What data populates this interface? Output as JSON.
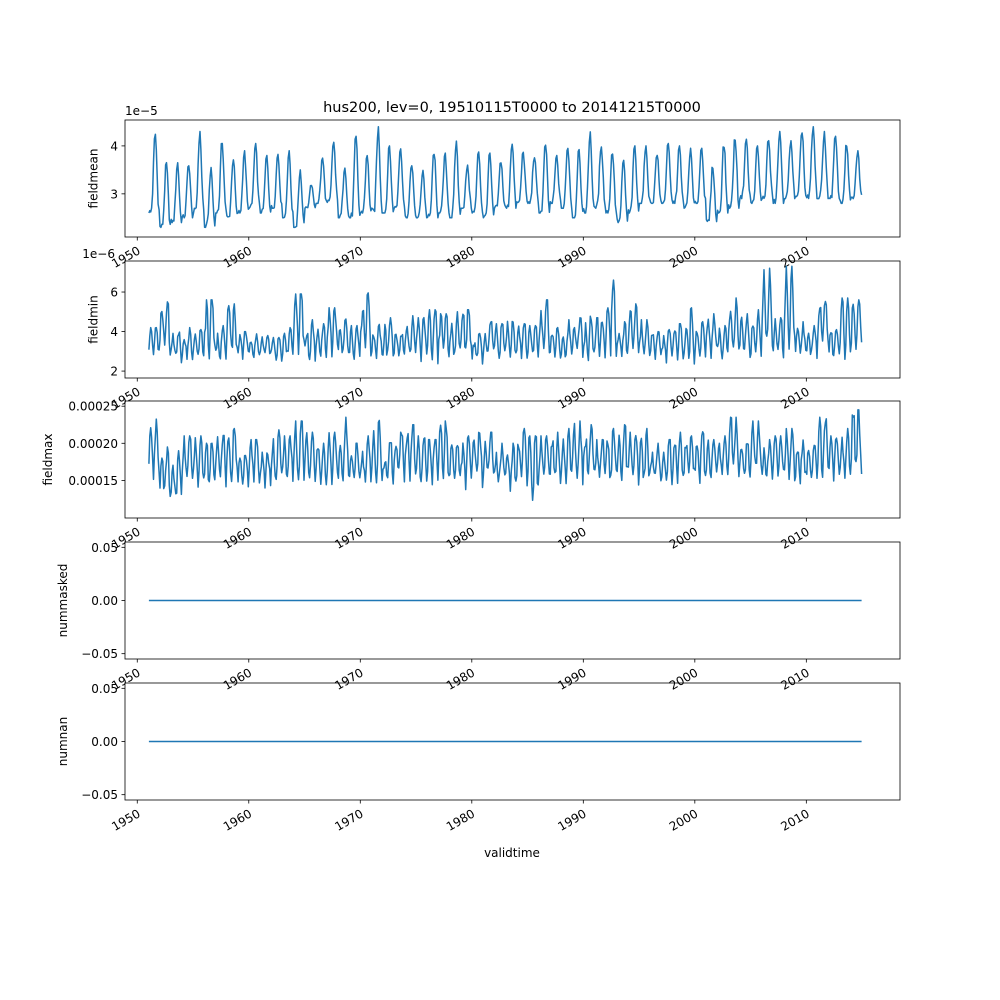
{
  "chart_data": {
    "type": "line",
    "title": "hus200, lev=0, 19510115T0000 to 20141215T0000",
    "xlabel": "validtime",
    "xlim": [
      1948.9,
      2018.4
    ],
    "xticks": [
      1950,
      1960,
      1970,
      1980,
      1990,
      2000,
      2010
    ],
    "xtick_labels": [
      "1950",
      "1960",
      "1970",
      "1980",
      "1990",
      "2000",
      "2010"
    ],
    "start_year": 1951,
    "end_year": 2014,
    "frequency": "monthly (15th of each month)",
    "line_color": "#1f77b4",
    "subplots": [
      {
        "ylabel": "fieldmean",
        "offset_text": "1e−5",
        "scale": 1e-05,
        "ylim": [
          2.1,
          4.54
        ],
        "yticks": [
          3,
          4
        ],
        "ytick_labels": [
          "3",
          "4"
        ],
        "seasonal": "single",
        "annual_peak": [
          4.25,
          3.65,
          3.65,
          3.65,
          4.3,
          3.55,
          4.1,
          3.75,
          3.9,
          4.05,
          3.8,
          3.85,
          3.9,
          3.5,
          3.2,
          3.75,
          4.1,
          3.6,
          4.2,
          3.8,
          4.4,
          4.0,
          4.0,
          3.65,
          3.5,
          3.9,
          3.85,
          4.1,
          3.6,
          3.9,
          3.85,
          3.7,
          4.1,
          3.9,
          3.8,
          4.05,
          3.8,
          4.0,
          4.0,
          4.3,
          4.05,
          3.9,
          3.7,
          4.0,
          4.0,
          3.85,
          4.05,
          4.0,
          3.95,
          4.0,
          3.6,
          4.05,
          4.2,
          4.15,
          4.0,
          4.15,
          4.3,
          4.15,
          4.35,
          4.4,
          4.3,
          4.2,
          4.05,
          3.9
        ],
        "annual_trough": [
          2.6,
          2.3,
          2.4,
          2.5,
          2.6,
          2.3,
          2.6,
          2.5,
          2.6,
          2.7,
          2.6,
          2.7,
          2.5,
          2.3,
          2.7,
          2.8,
          2.8,
          2.5,
          2.5,
          2.6,
          2.6,
          2.6,
          2.7,
          2.5,
          2.5,
          2.5,
          2.6,
          2.5,
          2.7,
          2.6,
          2.5,
          2.7,
          2.7,
          2.8,
          2.8,
          2.6,
          2.8,
          2.7,
          2.5,
          2.6,
          2.7,
          2.6,
          2.4,
          2.6,
          2.8,
          2.8,
          2.8,
          2.8,
          2.7,
          2.8,
          2.4,
          2.6,
          2.7,
          2.9,
          2.8,
          2.9,
          2.8,
          2.9,
          2.9,
          2.9,
          2.9,
          2.9,
          2.8,
          2.9
        ]
      },
      {
        "ylabel": "fieldmin",
        "offset_text": "1e−6",
        "scale": 1e-06,
        "ylim": [
          1.65,
          7.57
        ],
        "yticks": [
          2,
          4,
          6
        ],
        "ytick_labels": [
          "2",
          "4",
          "6"
        ],
        "seasonal": "double",
        "annual_peak": [
          4.2,
          5.5,
          4.0,
          4.2,
          4.1,
          5.6,
          4.3,
          5.4,
          4.0,
          3.9,
          3.8,
          3.7,
          4.2,
          5.9,
          4.6,
          4.4,
          5.2,
          4.9,
          4.3,
          6.0,
          4.5,
          4.7,
          3.9,
          4.8,
          4.7,
          5.1,
          4.9,
          5.0,
          5.1,
          3.9,
          4.5,
          4.4,
          4.6,
          4.4,
          4.3,
          5.6,
          4.2,
          4.6,
          5.0,
          4.8,
          4.7,
          7.0,
          4.5,
          5.4,
          4.6,
          4.0,
          4.1,
          4.4,
          5.2,
          4.5,
          4.9,
          4.3,
          5.7,
          4.9,
          5.1,
          7.2,
          4.7,
          7.3,
          4.5,
          4.3,
          5.8,
          4.1,
          5.7,
          5.6
        ],
        "annual_trough": [
          2.5,
          2.5,
          2.3,
          2.4,
          2.4,
          2.2,
          2.4,
          2.3,
          2.5,
          2.4,
          2.5,
          2.4,
          2.4,
          2.3,
          2.3,
          2.4,
          2.5,
          2.3,
          2.4,
          2.3,
          2.4,
          2.3,
          2.5,
          2.4,
          2.3,
          2.2,
          2.3,
          2.3,
          2.4,
          2.2,
          2.4,
          2.3,
          2.2,
          2.5,
          2.5,
          2.4,
          2.4,
          2.2,
          2.4,
          2.3,
          2.2,
          2.4,
          2.3,
          2.3,
          2.0,
          2.4,
          2.3,
          2.4,
          2.1,
          2.5,
          2.5,
          2.4,
          2.3,
          2.3,
          2.3,
          2.4,
          2.4,
          2.3,
          2.4,
          2.4,
          2.4,
          2.3,
          2.2,
          2.5
        ]
      },
      {
        "ylabel": "fieldmax",
        "offset_text": "",
        "scale": 0.0001,
        "ylim": [
          0.993,
          2.57
        ],
        "yticks": [
          1.5,
          2.0,
          2.5
        ],
        "ytick_labels": [
          "0.00015",
          "0.00020",
          "0.00025"
        ],
        "seasonal": "double",
        "annual_peak": [
          2.35,
          1.95,
          1.9,
          2.1,
          2.1,
          2.0,
          2.15,
          2.2,
          1.9,
          2.05,
          1.9,
          2.2,
          2.1,
          2.3,
          2.15,
          2.0,
          2.15,
          2.35,
          2.0,
          2.1,
          2.4,
          2.05,
          2.2,
          2.25,
          2.1,
          2.05,
          2.3,
          2.0,
          2.1,
          2.2,
          2.15,
          2.0,
          2.0,
          2.2,
          2.1,
          2.1,
          2.15,
          2.2,
          2.3,
          2.25,
          2.05,
          2.2,
          2.25,
          2.15,
          2.2,
          2.0,
          2.05,
          2.15,
          2.1,
          2.2,
          2.05,
          2.1,
          2.35,
          2.0,
          2.3,
          2.05,
          2.1,
          2.2,
          2.05,
          2.0,
          2.35,
          2.1,
          2.2,
          2.45
        ],
        "annual_trough": [
          1.45,
          1.15,
          1.1,
          1.3,
          1.35,
          1.3,
          1.35,
          1.4,
          1.3,
          1.35,
          1.35,
          1.3,
          1.4,
          1.35,
          1.4,
          1.35,
          1.3,
          1.35,
          1.4,
          1.4,
          1.4,
          1.35,
          1.4,
          1.3,
          1.35,
          1.4,
          1.3,
          1.4,
          1.3,
          1.35,
          1.4,
          1.35,
          1.3,
          1.35,
          1.1,
          1.4,
          1.35,
          1.4,
          1.35,
          1.35,
          1.4,
          1.35,
          1.4,
          1.35,
          1.3,
          1.4,
          1.4,
          1.35,
          1.45,
          1.4,
          1.45,
          1.45,
          1.4,
          1.45,
          1.45,
          1.4,
          1.45,
          1.45,
          1.4,
          1.45,
          1.4,
          1.45,
          1.4,
          1.45
        ]
      },
      {
        "ylabel": "nummasked",
        "offset_text": "",
        "scale": 1,
        "ylim": [
          -0.055,
          0.055
        ],
        "yticks": [
          -0.05,
          0.0,
          0.05
        ],
        "ytick_labels": [
          "−0.05",
          "0.00",
          "0.05"
        ],
        "seasonal": "constant",
        "constant_value": 0
      },
      {
        "ylabel": "numnan",
        "offset_text": "",
        "scale": 1,
        "ylim": [
          -0.055,
          0.055
        ],
        "yticks": [
          -0.05,
          0.0,
          0.05
        ],
        "ytick_labels": [
          "−0.05",
          "0.00",
          "0.05"
        ],
        "seasonal": "constant",
        "constant_value": 0
      }
    ]
  }
}
